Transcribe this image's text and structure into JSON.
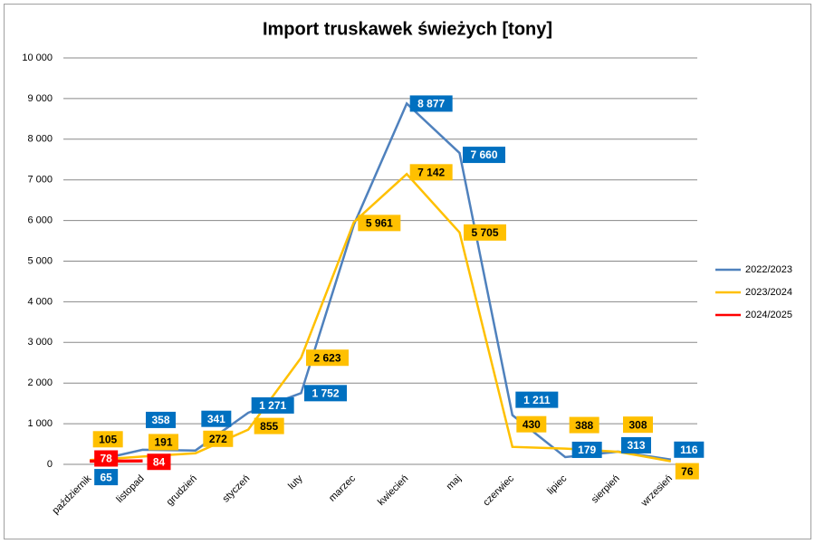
{
  "chart_data": {
    "type": "line",
    "title": "Import truskawek świeżych [tony]",
    "categories": [
      "październik",
      "listopad",
      "grudzień",
      "styczeń",
      "luty",
      "marzec",
      "kwiecień",
      "maj",
      "czerwiec",
      "lipiec",
      "sierpień",
      "wrzesień"
    ],
    "series": [
      {
        "name": "2022/2023",
        "color": "#4f81bd",
        "label_color": "#0070c0",
        "label_text_color": "#ffffff",
        "values": [
          65,
          358,
          341,
          1271,
          1752,
          5900,
          8877,
          7660,
          1211,
          179,
          313,
          116
        ],
        "value_labels": [
          "65",
          "358",
          "341",
          "1 271",
          "1 752",
          null,
          "8 877",
          "7 660",
          "1 211",
          "179",
          "313",
          "116"
        ]
      },
      {
        "name": "2023/2024",
        "color": "#ffc000",
        "label_color": "#ffc000",
        "label_text_color": "#000000",
        "values": [
          105,
          191,
          272,
          855,
          2623,
          5961,
          7142,
          5705,
          430,
          388,
          308,
          76
        ],
        "value_labels": [
          "105",
          "191",
          "272",
          "855",
          "2 623",
          "5 961",
          "7 142",
          "5 705",
          "430",
          "388",
          "308",
          "76"
        ]
      },
      {
        "name": "2024/2025",
        "color": "#ff0000",
        "label_color": "#ff0000",
        "label_text_color": "#ffffff",
        "values": [
          78,
          84,
          null,
          null,
          null,
          null,
          null,
          null,
          null,
          null,
          null,
          null
        ],
        "value_labels": [
          "78",
          "84",
          null,
          null,
          null,
          null,
          null,
          null,
          null,
          null,
          null,
          null
        ]
      }
    ],
    "ylim": [
      0,
      10000
    ],
    "yticks": [
      0,
      {
        "value": 1000,
        "label": "1 000"
      },
      {
        "value": 2000,
        "label": "2 000"
      },
      {
        "value": 3000,
        "label": "3 000"
      },
      {
        "value": 4000,
        "label": "4 000"
      },
      {
        "value": 5000,
        "label": "5 000"
      },
      {
        "value": 6000,
        "label": "6 000"
      },
      {
        "value": 7000,
        "label": "7 000"
      },
      {
        "value": 8000,
        "label": "8 000"
      },
      {
        "value": 9000,
        "label": "9 000"
      },
      {
        "value": 10000,
        "label": "10 000"
      }
    ],
    "grid": true,
    "legend": "right"
  }
}
